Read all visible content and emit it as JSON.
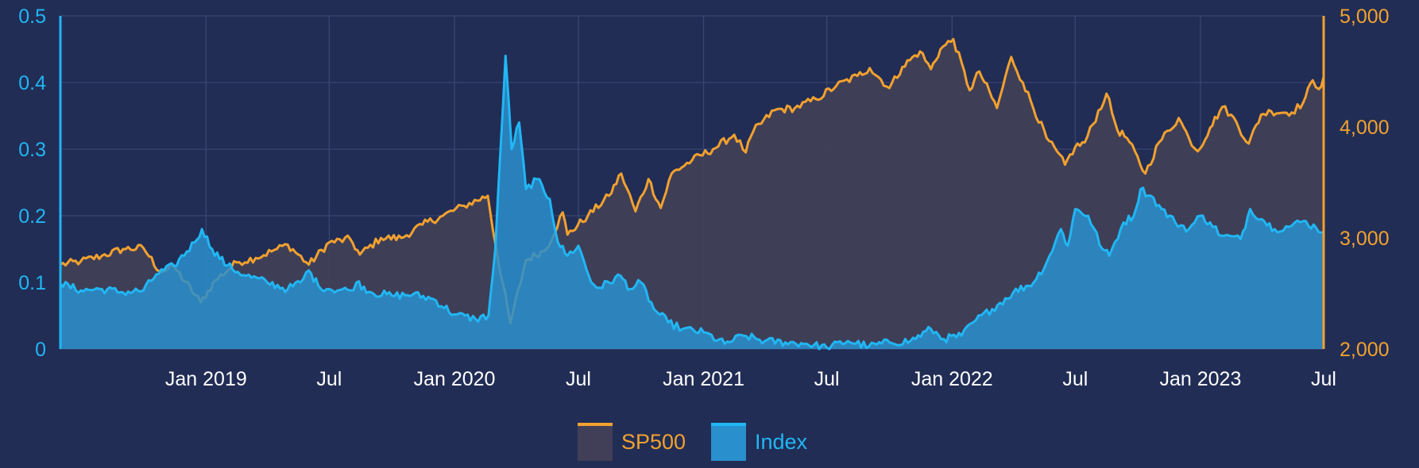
{
  "colors": {
    "background": "#212d55",
    "grid": "#3a4670",
    "sp500_line": "#f2a12f",
    "sp500_fill": "#413f57",
    "index_line": "#21b6f4",
    "index_fill": "#2a8fcd",
    "left_axis": "#21b6f4",
    "right_axis": "#f2a12f",
    "tick_text": "#ffffff"
  },
  "chart_data": {
    "type": "area",
    "x_axis": {
      "start": "2018-06-01",
      "end": "2023-07-01",
      "ticks": [
        {
          "date": "2019-01-01",
          "label": "Jan 2019"
        },
        {
          "date": "2019-07-01",
          "label": "Jul"
        },
        {
          "date": "2020-01-01",
          "label": "Jan 2020"
        },
        {
          "date": "2020-07-01",
          "label": "Jul"
        },
        {
          "date": "2021-01-01",
          "label": "Jan 2021"
        },
        {
          "date": "2021-07-01",
          "label": "Jul"
        },
        {
          "date": "2022-01-01",
          "label": "Jan 2022"
        },
        {
          "date": "2022-07-01",
          "label": "Jul"
        },
        {
          "date": "2023-01-01",
          "label": "Jan 2023"
        },
        {
          "date": "2023-07-01",
          "label": "Jul"
        }
      ]
    },
    "y_left": {
      "range": [
        0,
        0.5
      ],
      "ticks": [
        0,
        0.1,
        0.2,
        0.3,
        0.4,
        0.5
      ],
      "tick_labels": [
        "0",
        "0.1",
        "0.2",
        "0.3",
        "0.4",
        "0.5"
      ]
    },
    "y_right": {
      "range": [
        2000,
        5000
      ],
      "ticks": [
        2000,
        3000,
        4000,
        5000
      ],
      "tick_labels": [
        "2,000",
        "3,000",
        "4,000",
        "5,000"
      ]
    },
    "grid": true,
    "legend_position": "bottom-center",
    "series": [
      {
        "name": "SP500",
        "axis": "right",
        "points": [
          [
            "2018-06-01",
            2760
          ],
          [
            "2018-07-01",
            2790
          ],
          [
            "2018-08-01",
            2840
          ],
          [
            "2018-09-01",
            2900
          ],
          [
            "2018-10-01",
            2910
          ],
          [
            "2018-10-25",
            2700
          ],
          [
            "2018-11-15",
            2740
          ],
          [
            "2018-12-24",
            2420
          ],
          [
            "2019-01-15",
            2620
          ],
          [
            "2019-02-15",
            2780
          ],
          [
            "2019-03-15",
            2820
          ],
          [
            "2019-04-15",
            2900
          ],
          [
            "2019-05-01",
            2940
          ],
          [
            "2019-06-01",
            2760
          ],
          [
            "2019-07-01",
            2960
          ],
          [
            "2019-08-01",
            2990
          ],
          [
            "2019-08-15",
            2850
          ],
          [
            "2019-09-15",
            3000
          ],
          [
            "2019-10-15",
            3000
          ],
          [
            "2019-11-15",
            3120
          ],
          [
            "2019-12-15",
            3200
          ],
          [
            "2020-01-15",
            3290
          ],
          [
            "2020-02-19",
            3380
          ],
          [
            "2020-03-01",
            2950
          ],
          [
            "2020-03-23",
            2230
          ],
          [
            "2020-04-15",
            2800
          ],
          [
            "2020-05-15",
            2900
          ],
          [
            "2020-06-08",
            3230
          ],
          [
            "2020-06-15",
            3030
          ],
          [
            "2020-07-15",
            3200
          ],
          [
            "2020-08-15",
            3380
          ],
          [
            "2020-09-02",
            3580
          ],
          [
            "2020-09-23",
            3240
          ],
          [
            "2020-10-12",
            3530
          ],
          [
            "2020-10-30",
            3270
          ],
          [
            "2020-11-15",
            3580
          ],
          [
            "2020-12-15",
            3700
          ],
          [
            "2021-01-15",
            3800
          ],
          [
            "2021-02-15",
            3930
          ],
          [
            "2021-03-04",
            3770
          ],
          [
            "2021-03-15",
            3960
          ],
          [
            "2021-04-15",
            4150
          ],
          [
            "2021-05-15",
            4170
          ],
          [
            "2021-06-15",
            4250
          ],
          [
            "2021-07-15",
            4370
          ],
          [
            "2021-08-15",
            4460
          ],
          [
            "2021-09-02",
            4530
          ],
          [
            "2021-10-01",
            4350
          ],
          [
            "2021-10-20",
            4540
          ],
          [
            "2021-11-15",
            4680
          ],
          [
            "2021-12-01",
            4520
          ],
          [
            "2021-12-15",
            4700
          ],
          [
            "2022-01-03",
            4790
          ],
          [
            "2022-01-27",
            4330
          ],
          [
            "2022-02-10",
            4500
          ],
          [
            "2022-03-08",
            4170
          ],
          [
            "2022-03-29",
            4630
          ],
          [
            "2022-04-15",
            4400
          ],
          [
            "2022-05-20",
            3900
          ],
          [
            "2022-06-16",
            3660
          ],
          [
            "2022-07-01",
            3820
          ],
          [
            "2022-07-15",
            3860
          ],
          [
            "2022-08-16",
            4300
          ],
          [
            "2022-09-01",
            3970
          ],
          [
            "2022-09-15",
            3900
          ],
          [
            "2022-10-12",
            3580
          ],
          [
            "2022-11-01",
            3860
          ],
          [
            "2022-11-30",
            4080
          ],
          [
            "2022-12-15",
            3900
          ],
          [
            "2022-12-28",
            3780
          ],
          [
            "2023-01-15",
            3990
          ],
          [
            "2023-02-02",
            4180
          ],
          [
            "2023-02-15",
            4110
          ],
          [
            "2023-03-13",
            3850
          ],
          [
            "2023-03-31",
            4110
          ],
          [
            "2023-04-15",
            4140
          ],
          [
            "2023-05-15",
            4130
          ],
          [
            "2023-06-01",
            4220
          ],
          [
            "2023-06-15",
            4420
          ],
          [
            "2023-06-24",
            4340
          ],
          [
            "2023-07-01",
            4450
          ]
        ]
      },
      {
        "name": "Index",
        "axis": "left",
        "points": [
          [
            "2018-06-01",
            0.098
          ],
          [
            "2018-07-01",
            0.088
          ],
          [
            "2018-08-01",
            0.09
          ],
          [
            "2018-09-01",
            0.085
          ],
          [
            "2018-10-01",
            0.088
          ],
          [
            "2018-10-20",
            0.112
          ],
          [
            "2018-11-15",
            0.125
          ],
          [
            "2018-12-15",
            0.16
          ],
          [
            "2018-12-26",
            0.18
          ],
          [
            "2019-01-10",
            0.15
          ],
          [
            "2019-02-01",
            0.125
          ],
          [
            "2019-03-01",
            0.11
          ],
          [
            "2019-04-01",
            0.1
          ],
          [
            "2019-05-01",
            0.09
          ],
          [
            "2019-05-20",
            0.1
          ],
          [
            "2019-06-01",
            0.118
          ],
          [
            "2019-06-15",
            0.095
          ],
          [
            "2019-07-01",
            0.09
          ],
          [
            "2019-08-01",
            0.088
          ],
          [
            "2019-08-10",
            0.1
          ],
          [
            "2019-09-01",
            0.085
          ],
          [
            "2019-10-01",
            0.08
          ],
          [
            "2019-11-01",
            0.082
          ],
          [
            "2019-12-01",
            0.075
          ],
          [
            "2020-01-01",
            0.052
          ],
          [
            "2020-02-01",
            0.045
          ],
          [
            "2020-02-20",
            0.05
          ],
          [
            "2020-03-01",
            0.15
          ],
          [
            "2020-03-16",
            0.44
          ],
          [
            "2020-03-25",
            0.3
          ],
          [
            "2020-04-05",
            0.34
          ],
          [
            "2020-04-15",
            0.24
          ],
          [
            "2020-05-01",
            0.255
          ],
          [
            "2020-05-20",
            0.225
          ],
          [
            "2020-06-01",
            0.16
          ],
          [
            "2020-06-15",
            0.14
          ],
          [
            "2020-07-01",
            0.155
          ],
          [
            "2020-07-20",
            0.1
          ],
          [
            "2020-08-01",
            0.092
          ],
          [
            "2020-09-01",
            0.11
          ],
          [
            "2020-09-15",
            0.09
          ],
          [
            "2020-10-01",
            0.1
          ],
          [
            "2020-10-20",
            0.06
          ],
          [
            "2020-11-10",
            0.04
          ],
          [
            "2020-12-01",
            0.03
          ],
          [
            "2021-01-01",
            0.025
          ],
          [
            "2021-02-01",
            0.008
          ],
          [
            "2021-03-01",
            0.02
          ],
          [
            "2021-04-01",
            0.012
          ],
          [
            "2021-05-01",
            0.01
          ],
          [
            "2021-06-01",
            0.008
          ],
          [
            "2021-07-01",
            0.002
          ],
          [
            "2021-08-01",
            0.012
          ],
          [
            "2021-09-01",
            0.004
          ],
          [
            "2021-10-01",
            0.01
          ],
          [
            "2021-11-01",
            0.012
          ],
          [
            "2021-12-01",
            0.03
          ],
          [
            "2021-12-20",
            0.015
          ],
          [
            "2022-01-15",
            0.02
          ],
          [
            "2022-02-01",
            0.04
          ],
          [
            "2022-03-01",
            0.06
          ],
          [
            "2022-04-01",
            0.085
          ],
          [
            "2022-05-01",
            0.1
          ],
          [
            "2022-05-20",
            0.13
          ],
          [
            "2022-06-10",
            0.18
          ],
          [
            "2022-06-20",
            0.155
          ],
          [
            "2022-07-01",
            0.21
          ],
          [
            "2022-07-20",
            0.2
          ],
          [
            "2022-08-10",
            0.15
          ],
          [
            "2022-08-20",
            0.14
          ],
          [
            "2022-09-10",
            0.19
          ],
          [
            "2022-09-25",
            0.2
          ],
          [
            "2022-10-05",
            0.24
          ],
          [
            "2022-10-20",
            0.23
          ],
          [
            "2022-11-05",
            0.21
          ],
          [
            "2022-11-25",
            0.19
          ],
          [
            "2022-12-15",
            0.18
          ],
          [
            "2023-01-01",
            0.2
          ],
          [
            "2023-01-15",
            0.19
          ],
          [
            "2023-02-01",
            0.17
          ],
          [
            "2023-03-01",
            0.165
          ],
          [
            "2023-03-15",
            0.21
          ],
          [
            "2023-04-01",
            0.195
          ],
          [
            "2023-04-20",
            0.18
          ],
          [
            "2023-05-15",
            0.185
          ],
          [
            "2023-06-01",
            0.192
          ],
          [
            "2023-06-20",
            0.182
          ],
          [
            "2023-07-01",
            0.175
          ]
        ]
      }
    ]
  }
}
